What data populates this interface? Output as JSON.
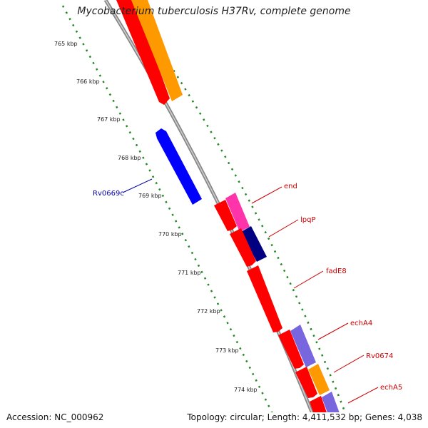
{
  "title": "Mycobacterium tuberculosis H37Rv, complete genome",
  "accession": "Accession: NC_000962",
  "summary": "Topology: circular; Length: 4,411,532 bp; Genes: 4,038",
  "ticks": [
    "765 kbp",
    "766 kbp",
    "767 kbp",
    "768 kbp",
    "769 kbp",
    "770 kbp",
    "771 kbp",
    "772 kbp",
    "773 kbp",
    "774 kbp"
  ],
  "labels": [
    {
      "text": "Rv0669c",
      "color": "#0000aa"
    },
    {
      "text": "end",
      "color": "#cc0000"
    },
    {
      "text": "lpqP",
      "color": "#cc0000"
    },
    {
      "text": "fadE8",
      "color": "#cc0000"
    },
    {
      "text": "echA4",
      "color": "#cc0000"
    },
    {
      "text": "Rv0674",
      "color": "#cc0000"
    },
    {
      "text": "echA5",
      "color": "#cc0000"
    }
  ],
  "colors": {
    "red": "#ff0000",
    "orange": "#ff9900",
    "blue": "#0000ff",
    "navy": "#000080",
    "magenta": "#ff33aa",
    "lavender": "#7766dd",
    "backbone": "#888888",
    "tick": "#228822"
  }
}
